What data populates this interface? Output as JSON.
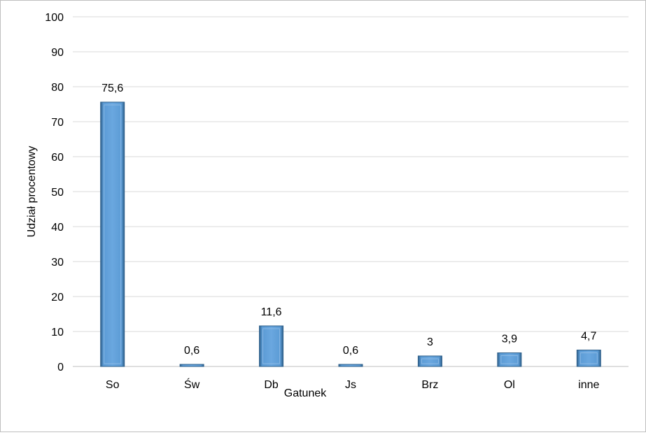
{
  "chart_data": {
    "type": "bar",
    "categories": [
      "So",
      "Św",
      "Db",
      "Js",
      "Brz",
      "Ol",
      "inne"
    ],
    "values": [
      75.6,
      0.6,
      11.6,
      0.6,
      3,
      3.9,
      4.7
    ],
    "value_labels": [
      "75,6",
      "0,6",
      "11,6",
      "0,6",
      "3",
      "3,9",
      "4,7"
    ],
    "xlabel": "Gatunek",
    "ylabel": "Udział procentowy",
    "ylim": [
      0,
      100
    ],
    "yticks": [
      "0",
      "10",
      "20",
      "30",
      "40",
      "50",
      "60",
      "70",
      "80",
      "90",
      "100"
    ],
    "grid": true,
    "legend": "none",
    "colors": {
      "bar_fill": "#5b9bd5",
      "bar_edge": "#2e5f8a",
      "bar_highlight": "#9cc3e8",
      "grid": "#d9d9d9",
      "frame": "#bfbfbf"
    }
  }
}
